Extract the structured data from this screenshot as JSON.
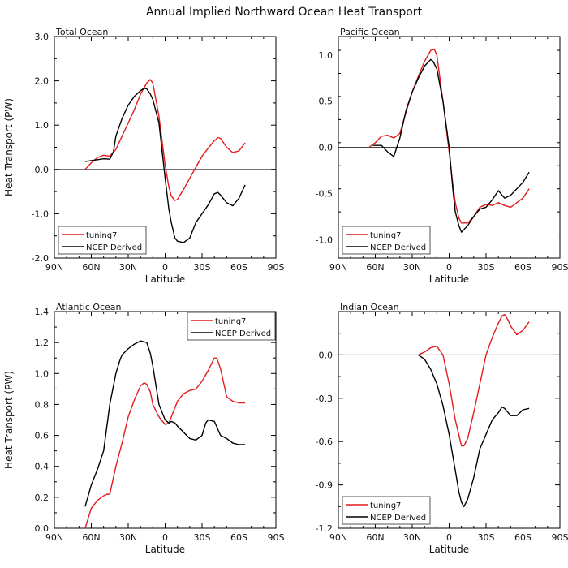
{
  "title": "Annual Implied Northward Ocean Heat Transport",
  "colors": {
    "tuning7": "#e41a1c",
    "ncep": "#000000",
    "axis": "#000000",
    "zero": "#444444"
  },
  "chart_data": [
    {
      "type": "line",
      "title": "Total Ocean",
      "xlabel": "Latitude",
      "ylabel": "Heat Transport (PW)",
      "xlim": [
        -90,
        90
      ],
      "ylim": [
        -2.0,
        3.0
      ],
      "xticks": [
        -90,
        -60,
        -30,
        0,
        30,
        60,
        90
      ],
      "xtick_labels": [
        "90N",
        "60N",
        "30N",
        "0",
        "30S",
        "60S",
        "90S"
      ],
      "yticks": [
        -2,
        -1,
        0,
        1,
        2,
        3
      ],
      "ytick_labels": [
        "-2.0",
        "-1.0",
        "0.0",
        "1.0",
        "2.0",
        "3.0"
      ],
      "zero_line": true,
      "legend": {
        "position": "bottom-left",
        "entries": [
          "tuning7",
          "NCEP Derived"
        ]
      },
      "series": [
        {
          "name": "tuning7",
          "color": "tuning7",
          "x": [
            -65,
            -60,
            -55,
            -50,
            -45,
            -40,
            -35,
            -30,
            -25,
            -20,
            -15,
            -12,
            -10,
            -5,
            0,
            3,
            5,
            8,
            10,
            15,
            20,
            25,
            30,
            35,
            40,
            43,
            45,
            50,
            55,
            60,
            65
          ],
          "y": [
            0.0,
            0.15,
            0.27,
            0.32,
            0.3,
            0.45,
            0.75,
            1.05,
            1.35,
            1.7,
            1.95,
            2.03,
            1.95,
            1.2,
            0.1,
            -0.4,
            -0.6,
            -0.7,
            -0.68,
            -0.45,
            -0.2,
            0.05,
            0.3,
            0.48,
            0.65,
            0.72,
            0.7,
            0.5,
            0.38,
            0.42,
            0.6
          ]
        },
        {
          "name": "NCEP Derived",
          "color": "ncep",
          "x": [
            -65,
            -60,
            -55,
            -50,
            -45,
            -42,
            -40,
            -35,
            -30,
            -25,
            -20,
            -17,
            -15,
            -12,
            -10,
            -5,
            0,
            3,
            5,
            8,
            10,
            15,
            20,
            25,
            30,
            35,
            40,
            43,
            45,
            50,
            55,
            60,
            65
          ],
          "y": [
            0.18,
            0.2,
            0.22,
            0.24,
            0.23,
            0.4,
            0.75,
            1.15,
            1.45,
            1.65,
            1.78,
            1.83,
            1.82,
            1.7,
            1.58,
            1.05,
            -0.2,
            -0.9,
            -1.2,
            -1.55,
            -1.62,
            -1.65,
            -1.55,
            -1.2,
            -1.0,
            -0.8,
            -0.55,
            -0.52,
            -0.58,
            -0.75,
            -0.82,
            -0.65,
            -0.35
          ]
        }
      ]
    },
    {
      "type": "line",
      "title": "Pacific Ocean",
      "xlabel": "Latitude",
      "ylabel": "",
      "xlim": [
        -90,
        90
      ],
      "ylim": [
        -1.2,
        1.2
      ],
      "xticks": [
        -90,
        -60,
        -30,
        0,
        30,
        60,
        90
      ],
      "xtick_labels": [
        "90N",
        "60N",
        "30N",
        "0",
        "30S",
        "60S",
        "90S"
      ],
      "yticks": [
        -1,
        -0.5,
        0,
        0.5,
        1
      ],
      "ytick_labels": [
        "-1.0",
        "-0.5",
        "0.0",
        "0.5",
        "1.0"
      ],
      "zero_line": true,
      "legend": {
        "position": "bottom-left",
        "entries": [
          "tuning7",
          "NCEP Derived"
        ]
      },
      "series": [
        {
          "name": "tuning7",
          "color": "tuning7",
          "x": [
            -65,
            -60,
            -55,
            -50,
            -45,
            -40,
            -35,
            -30,
            -25,
            -20,
            -15,
            -12,
            -10,
            -8,
            -5,
            0,
            3,
            5,
            8,
            10,
            15,
            20,
            25,
            30,
            35,
            40,
            45,
            50,
            55,
            60,
            65
          ],
          "y": [
            0.0,
            0.05,
            0.12,
            0.13,
            0.1,
            0.15,
            0.38,
            0.6,
            0.77,
            0.93,
            1.05,
            1.06,
            1.0,
            0.8,
            0.5,
            -0.05,
            -0.4,
            -0.6,
            -0.77,
            -0.82,
            -0.82,
            -0.75,
            -0.65,
            -0.62,
            -0.63,
            -0.6,
            -0.63,
            -0.65,
            -0.6,
            -0.55,
            -0.45
          ]
        },
        {
          "name": "NCEP Derived",
          "color": "ncep",
          "x": [
            -62,
            -58,
            -55,
            -50,
            -45,
            -40,
            -35,
            -30,
            -25,
            -20,
            -15,
            -13,
            -10,
            -5,
            0,
            3,
            5,
            8,
            10,
            15,
            20,
            25,
            30,
            35,
            40,
            45,
            50,
            55,
            60,
            65
          ],
          "y": [
            0.02,
            0.02,
            0.02,
            -0.05,
            -0.1,
            0.1,
            0.4,
            0.6,
            0.75,
            0.88,
            0.95,
            0.93,
            0.85,
            0.5,
            0.0,
            -0.45,
            -0.7,
            -0.85,
            -0.92,
            -0.85,
            -0.75,
            -0.67,
            -0.65,
            -0.57,
            -0.47,
            -0.55,
            -0.52,
            -0.45,
            -0.38,
            -0.27
          ]
        }
      ]
    },
    {
      "type": "line",
      "title": "Atlantic Ocean",
      "xlabel": "Latitude",
      "ylabel": "Heat Transport (PW)",
      "xlim": [
        -90,
        90
      ],
      "ylim": [
        0.0,
        1.4
      ],
      "xticks": [
        -90,
        -60,
        -30,
        0,
        30,
        60,
        90
      ],
      "xtick_labels": [
        "90N",
        "60N",
        "30N",
        "0",
        "30S",
        "60S",
        "90S"
      ],
      "yticks": [
        0,
        0.2,
        0.4,
        0.6,
        0.8,
        1.0,
        1.2,
        1.4
      ],
      "ytick_labels": [
        "0.0",
        "0.2",
        "0.4",
        "0.6",
        "0.8",
        "1.0",
        "1.2",
        "1.4"
      ],
      "zero_line": false,
      "legend": {
        "position": "top-right",
        "entries": [
          "tuning7",
          "NCEP Derived"
        ]
      },
      "series": [
        {
          "name": "tuning7",
          "color": "tuning7",
          "x": [
            -65,
            -60,
            -55,
            -50,
            -47,
            -45,
            -40,
            -35,
            -30,
            -25,
            -20,
            -17,
            -15,
            -12,
            -10,
            -5,
            0,
            3,
            5,
            10,
            15,
            20,
            25,
            30,
            35,
            40,
            42,
            45,
            50,
            55,
            60,
            65
          ],
          "y": [
            0.0,
            0.13,
            0.18,
            0.21,
            0.22,
            0.22,
            0.4,
            0.55,
            0.72,
            0.83,
            0.92,
            0.94,
            0.93,
            0.88,
            0.8,
            0.72,
            0.67,
            0.68,
            0.72,
            0.82,
            0.87,
            0.89,
            0.9,
            0.95,
            1.02,
            1.1,
            1.1,
            1.03,
            0.85,
            0.82,
            0.81,
            0.81
          ]
        },
        {
          "name": "NCEP Derived",
          "color": "ncep",
          "x": [
            -65,
            -60,
            -55,
            -50,
            -45,
            -40,
            -37,
            -35,
            -30,
            -25,
            -20,
            -15,
            -12,
            -10,
            -5,
            0,
            3,
            5,
            8,
            10,
            15,
            20,
            25,
            30,
            33,
            35,
            40,
            45,
            50,
            55,
            60,
            65
          ],
          "y": [
            0.14,
            0.28,
            0.38,
            0.5,
            0.8,
            1.0,
            1.08,
            1.12,
            1.16,
            1.19,
            1.21,
            1.2,
            1.13,
            1.05,
            0.8,
            0.7,
            0.68,
            0.69,
            0.68,
            0.66,
            0.62,
            0.58,
            0.57,
            0.6,
            0.68,
            0.7,
            0.69,
            0.6,
            0.58,
            0.55,
            0.54,
            0.54
          ]
        }
      ]
    },
    {
      "type": "line",
      "title": "Indian Ocean",
      "xlabel": "Latitude",
      "ylabel": "",
      "xlim": [
        -90,
        90
      ],
      "ylim": [
        -1.2,
        0.3
      ],
      "xticks": [
        -90,
        -60,
        -30,
        0,
        30,
        60,
        90
      ],
      "xtick_labels": [
        "90N",
        "60N",
        "30N",
        "0",
        "30S",
        "60S",
        "90S"
      ],
      "yticks": [
        -1.2,
        -0.9,
        -0.6,
        -0.3,
        0.0
      ],
      "ytick_labels": [
        "-1.2",
        "-0.9",
        "-0.6",
        "-0.3",
        "0.0"
      ],
      "zero_line": true,
      "legend": {
        "position": "bottom-left",
        "entries": [
          "tuning7",
          "NCEP Derived"
        ]
      },
      "series": [
        {
          "name": "tuning7",
          "color": "tuning7",
          "x": [
            -25,
            -20,
            -15,
            -10,
            -5,
            0,
            5,
            10,
            12,
            15,
            20,
            25,
            30,
            35,
            40,
            43,
            45,
            48,
            50,
            55,
            60,
            65
          ],
          "y": [
            0.0,
            0.02,
            0.05,
            0.06,
            0.0,
            -0.2,
            -0.45,
            -0.63,
            -0.63,
            -0.58,
            -0.4,
            -0.2,
            0.0,
            0.12,
            0.22,
            0.27,
            0.28,
            0.24,
            0.2,
            0.14,
            0.17,
            0.23
          ]
        },
        {
          "name": "NCEP Derived",
          "color": "ncep",
          "x": [
            -25,
            -20,
            -15,
            -10,
            -5,
            0,
            5,
            8,
            10,
            12,
            15,
            20,
            25,
            30,
            35,
            40,
            43,
            45,
            48,
            50,
            55,
            60,
            65
          ],
          "y": [
            0.0,
            -0.03,
            -0.1,
            -0.2,
            -0.35,
            -0.55,
            -0.8,
            -0.95,
            -1.02,
            -1.05,
            -1.0,
            -0.85,
            -0.65,
            -0.55,
            -0.45,
            -0.4,
            -0.36,
            -0.37,
            -0.4,
            -0.42,
            -0.42,
            -0.38,
            -0.37
          ]
        }
      ]
    }
  ]
}
